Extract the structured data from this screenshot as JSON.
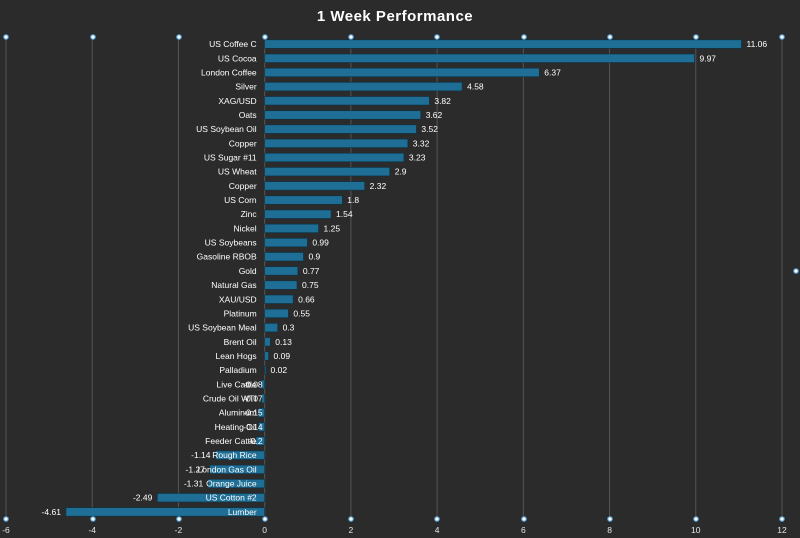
{
  "chart_data": {
    "type": "bar",
    "orientation": "horizontal",
    "title": "1 Week Performance",
    "categories": [
      "US Coffee C",
      "US Cocoa",
      "London Coffee",
      "Silver",
      "XAG/USD",
      "Oats",
      "US Soybean Oil",
      "Copper",
      "US Sugar #11",
      "US Wheat",
      "Copper",
      "US Corn",
      "Zinc",
      "Nickel",
      "US Soybeans",
      "Gasoline RBOB",
      "Gold",
      "Natural Gas",
      "XAU/USD",
      "Platinum",
      "US Soybean Meal",
      "Brent Oil",
      "Lean Hogs",
      "Palladium",
      "Live Cattle",
      "Crude Oil WTI",
      "Aluminum",
      "Heating Oil",
      "Feeder Cattle",
      "Rough Rice",
      "London Gas Oil",
      "Orange Juice",
      "US Cotton #2",
      "Lumber"
    ],
    "values": [
      11.06,
      9.97,
      6.37,
      4.58,
      3.82,
      3.62,
      3.52,
      3.32,
      3.23,
      2.9,
      2.32,
      1.8,
      1.54,
      1.25,
      0.99,
      0.9,
      0.77,
      0.75,
      0.66,
      0.55,
      0.3,
      0.13,
      0.09,
      0.02,
      -0.08,
      -0.07,
      -0.15,
      -0.14,
      -0.2,
      -1.14,
      -1.27,
      -1.31,
      -2.49,
      -4.61
    ],
    "value_labels": [
      "11.06",
      "9.97",
      "6.37",
      "4.58",
      "3.82",
      "3.62",
      "3.52",
      "3.32",
      "3.23",
      "2.9",
      "2.32",
      "1.8",
      "1.54",
      "1.25",
      "0.99",
      "0.9",
      "0.77",
      "0.75",
      "0.66",
      "0.55",
      "0.3",
      "0.13",
      "0.09",
      "0.02",
      "-0.08",
      "-0.07",
      "-0.15",
      "-0.14",
      "-0.2",
      "-1.14",
      "-1.27",
      "-1.31",
      "-2.49",
      "-4.61"
    ],
    "xlim": [
      -6,
      12
    ],
    "xticks": [
      -6,
      -4,
      -2,
      0,
      2,
      4,
      6,
      8,
      10,
      12
    ],
    "grid": true,
    "colors": {
      "background": "#2b2b2b",
      "bar": "#1e6e95",
      "text": "#ffffff",
      "grid": "#555555"
    }
  }
}
